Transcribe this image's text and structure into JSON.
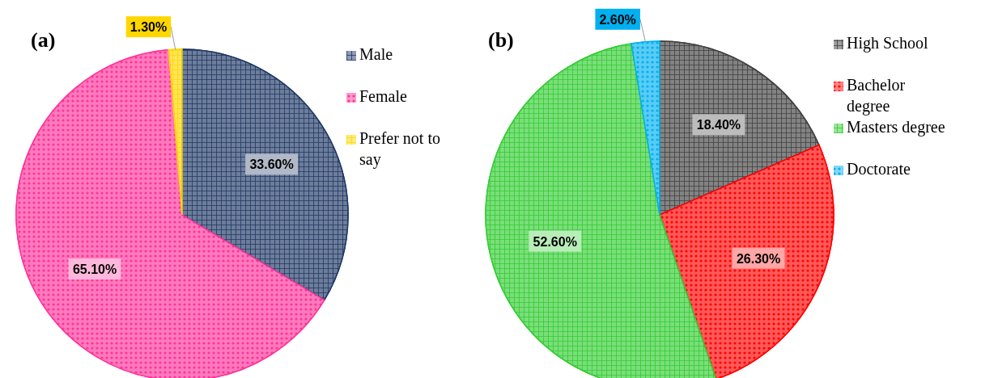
{
  "chart_data": [
    {
      "type": "pie",
      "title": "(a)",
      "categories": [
        "Male",
        "Female",
        "Prefer not to say"
      ],
      "values": [
        33.6,
        65.1,
        1.3
      ],
      "colors": [
        "#1f3864",
        "#ff3399",
        "#ffd700"
      ],
      "value_labels": [
        "33.60%",
        "65.10%",
        "1.30%"
      ],
      "legend": "right"
    },
    {
      "type": "pie",
      "title": "(b)",
      "categories": [
        "High School",
        "Bachelor degree",
        "Masters degree",
        "Doctorate"
      ],
      "values": [
        18.4,
        26.3,
        52.6,
        2.6
      ],
      "colors": [
        "#404040",
        "#ff0000",
        "#33cc33",
        "#00b0f0"
      ],
      "value_labels": [
        "18.40%",
        "26.30%",
        "52.60%",
        "2.60%"
      ],
      "legend": "right"
    }
  ]
}
